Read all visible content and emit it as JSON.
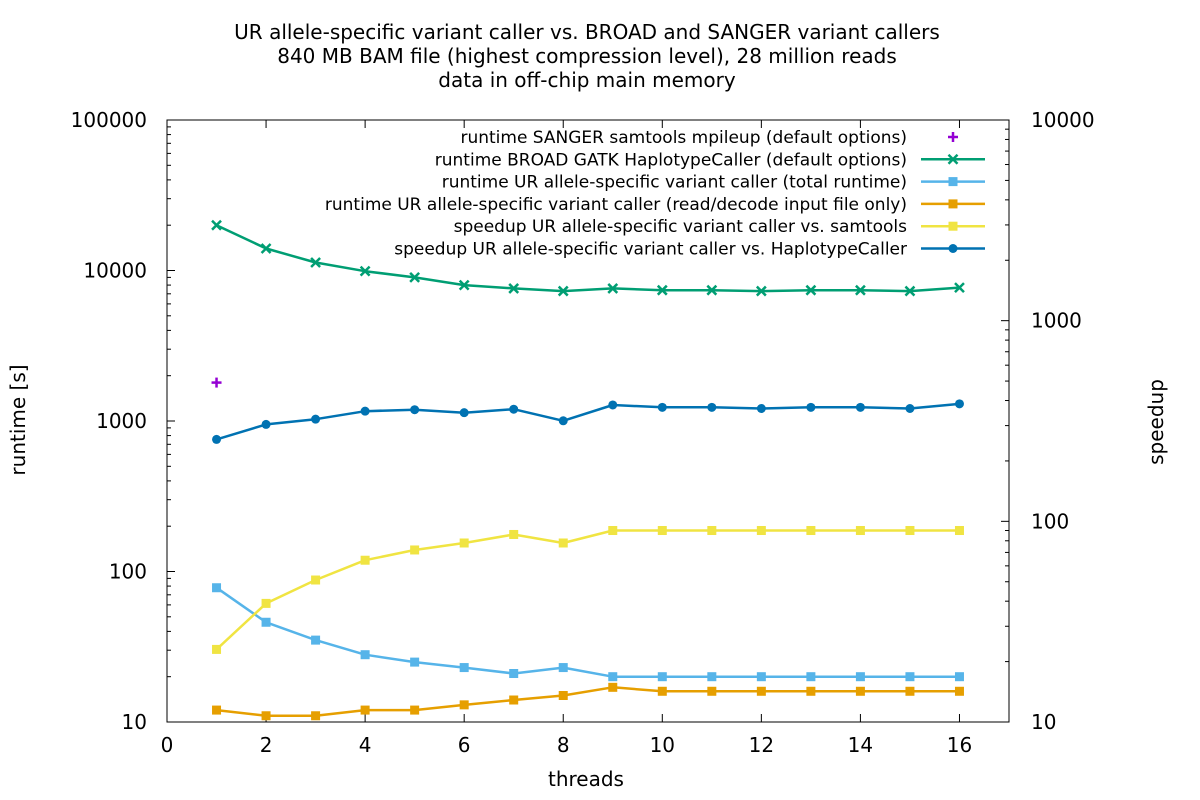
{
  "chart_data": {
    "type": "line",
    "title_lines": [
      "UR allele-specific variant caller vs. BROAD and SANGER variant callers",
      "840 MB BAM file (highest compression level), 28 million reads",
      "data in off-chip main memory"
    ],
    "xlabel": "threads",
    "ylabel_left": "runtime [s]",
    "ylabel_right": "speedup",
    "xlim": [
      0,
      17
    ],
    "x_ticks": [
      "0",
      "2",
      "4",
      "6",
      "8",
      "10",
      "12",
      "14",
      "16"
    ],
    "y_left": {
      "scale": "log",
      "lim": [
        10,
        100000
      ],
      "ticks": [
        "10",
        "100",
        "1000",
        "10000",
        "100000"
      ]
    },
    "y_right": {
      "scale": "log",
      "lim": [
        10,
        10000
      ],
      "ticks": [
        "10",
        "100",
        "1000",
        "10000"
      ]
    },
    "grid": false,
    "legend_position": "top-right",
    "series": [
      {
        "name": "runtime SANGER samtools mpileup (default options)",
        "axis": "left",
        "color": "#9400d3",
        "marker": "plus",
        "line": false,
        "points": [
          [
            1,
            1800
          ]
        ]
      },
      {
        "name": "runtime BROAD GATK HaplotypeCaller (default options)",
        "axis": "left",
        "color": "#009e73",
        "marker": "x",
        "line": true,
        "points": [
          [
            1,
            20000
          ],
          [
            2,
            14000
          ],
          [
            3,
            11300
          ],
          [
            4,
            9900
          ],
          [
            5,
            9000
          ],
          [
            6,
            8000
          ],
          [
            7,
            7600
          ],
          [
            8,
            7300
          ],
          [
            9,
            7600
          ],
          [
            10,
            7400
          ],
          [
            11,
            7400
          ],
          [
            12,
            7300
          ],
          [
            13,
            7400
          ],
          [
            14,
            7400
          ],
          [
            15,
            7300
          ],
          [
            16,
            7700
          ]
        ]
      },
      {
        "name": "runtime UR allele-specific variant caller (total runtime)",
        "axis": "left",
        "color": "#56b4e9",
        "marker": "square",
        "line": true,
        "points": [
          [
            1,
            78
          ],
          [
            2,
            46
          ],
          [
            3,
            35
          ],
          [
            4,
            28
          ],
          [
            5,
            25
          ],
          [
            6,
            23
          ],
          [
            7,
            21
          ],
          [
            8,
            23
          ],
          [
            9,
            20
          ],
          [
            10,
            20
          ],
          [
            11,
            20
          ],
          [
            12,
            20
          ],
          [
            13,
            20
          ],
          [
            14,
            20
          ],
          [
            15,
            20
          ],
          [
            16,
            20
          ]
        ]
      },
      {
        "name": "runtime UR allele-specific variant caller (read/decode input file only)",
        "axis": "left",
        "color": "#e69f00",
        "marker": "square",
        "line": true,
        "points": [
          [
            1,
            12
          ],
          [
            2,
            11
          ],
          [
            3,
            11
          ],
          [
            4,
            12
          ],
          [
            5,
            12
          ],
          [
            6,
            13
          ],
          [
            7,
            14
          ],
          [
            8,
            15
          ],
          [
            9,
            17
          ],
          [
            10,
            16
          ],
          [
            11,
            16
          ],
          [
            12,
            16
          ],
          [
            13,
            16
          ],
          [
            14,
            16
          ],
          [
            15,
            16
          ],
          [
            16,
            16
          ]
        ]
      },
      {
        "name": "speedup UR allele-specific variant caller vs. samtools",
        "axis": "right",
        "color": "#f0e442",
        "marker": "square",
        "line": true,
        "points": [
          [
            1,
            23
          ],
          [
            2,
            39
          ],
          [
            3,
            51
          ],
          [
            4,
            64
          ],
          [
            5,
            72
          ],
          [
            6,
            78
          ],
          [
            7,
            86
          ],
          [
            8,
            78
          ],
          [
            9,
            90
          ],
          [
            10,
            90
          ],
          [
            11,
            90
          ],
          [
            12,
            90
          ],
          [
            13,
            90
          ],
          [
            14,
            90
          ],
          [
            15,
            90
          ],
          [
            16,
            90
          ]
        ]
      },
      {
        "name": "speedup UR allele-specific variant caller vs. HaplotypeCaller",
        "axis": "right",
        "color": "#0072b2",
        "marker": "circle",
        "line": true,
        "points": [
          [
            1,
            256
          ],
          [
            2,
            304
          ],
          [
            3,
            323
          ],
          [
            4,
            354
          ],
          [
            5,
            360
          ],
          [
            6,
            348
          ],
          [
            7,
            362
          ],
          [
            8,
            317
          ],
          [
            9,
            380
          ],
          [
            10,
            370
          ],
          [
            11,
            370
          ],
          [
            12,
            365
          ],
          [
            13,
            370
          ],
          [
            14,
            370
          ],
          [
            15,
            365
          ],
          [
            16,
            385
          ]
        ]
      }
    ]
  }
}
